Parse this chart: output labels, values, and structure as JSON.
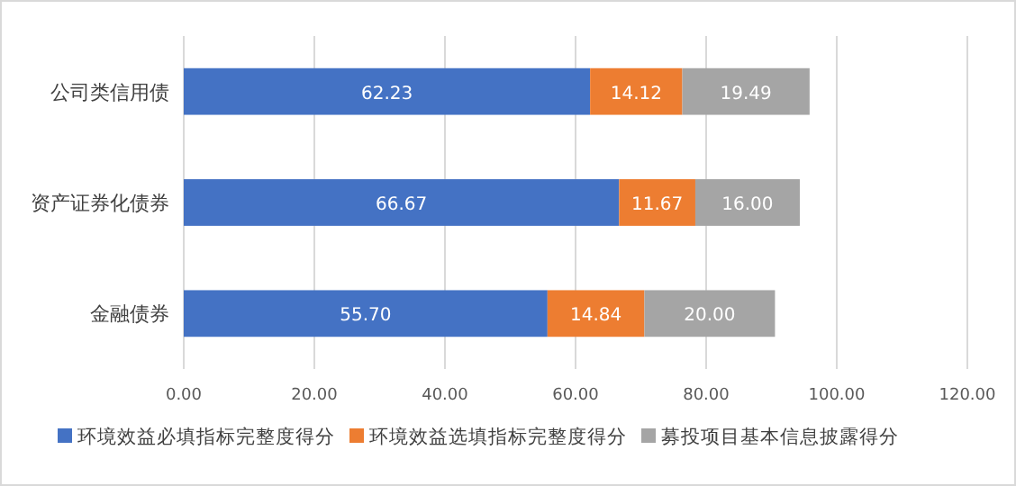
{
  "chart_data": {
    "type": "bar",
    "orientation": "horizontal",
    "stacked": true,
    "categories": [
      "公司类信用债",
      "资产证券化债券",
      "金融债券"
    ],
    "series": [
      {
        "name": "环境效益必填指标完整度得分",
        "color": "#4472c4",
        "values": [
          62.23,
          66.67,
          55.7
        ],
        "value_labels": [
          "62.23",
          "66.67",
          "55.70"
        ]
      },
      {
        "name": "环境效益选填指标完整度得分",
        "color": "#ed7d31",
        "values": [
          14.12,
          11.67,
          14.84
        ],
        "value_labels": [
          "14.12",
          "11.67",
          "14.84"
        ]
      },
      {
        "name": "募投项目基本信息披露得分",
        "color": "#a5a5a5",
        "values": [
          19.49,
          16.0,
          20.0
        ],
        "value_labels": [
          "19.49",
          "16.00",
          "20.00"
        ]
      }
    ],
    "xlim": [
      0,
      120
    ],
    "xticks": [
      {
        "value": 0,
        "label": "0.00"
      },
      {
        "value": 20,
        "label": "20.00"
      },
      {
        "value": 40,
        "label": "40.00"
      },
      {
        "value": 60,
        "label": "60.00"
      },
      {
        "value": 80,
        "label": "80.00"
      },
      {
        "value": 100,
        "label": "100.00"
      },
      {
        "value": 120,
        "label": "120.00"
      }
    ],
    "grid": "x",
    "legend": "bottom"
  }
}
